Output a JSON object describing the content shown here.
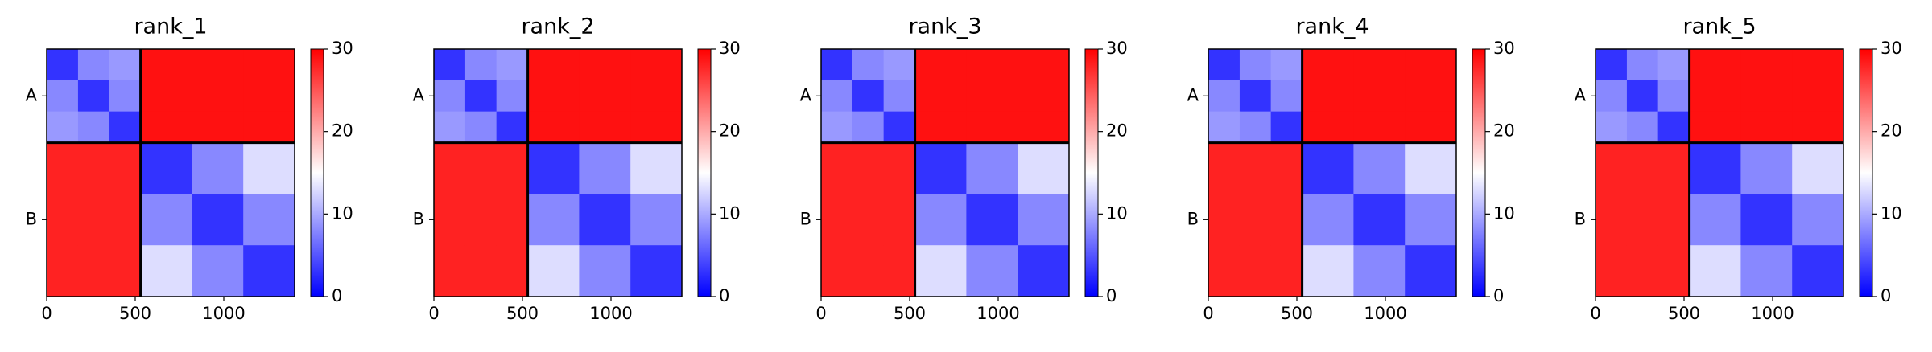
{
  "chart_data": [
    {
      "type": "heatmap",
      "title": "rank_1",
      "bins": [
        0,
        177,
        353,
        530,
        820,
        1110,
        1400
      ],
      "matrix": [
        [
          3,
          8,
          9,
          29,
          29,
          29
        ],
        [
          8,
          3,
          8,
          29,
          29,
          29
        ],
        [
          9,
          8,
          3,
          29,
          29,
          29
        ],
        [
          28,
          28,
          28,
          3,
          8,
          13
        ],
        [
          28,
          28,
          28,
          8,
          3,
          8
        ],
        [
          28,
          28,
          28,
          13,
          8,
          3
        ]
      ],
      "chain_breaks": [
        530
      ],
      "xlim": [
        0,
        1400
      ],
      "xticks": [
        0,
        500,
        1000
      ],
      "ylim": [
        1400,
        0
      ],
      "yticks": [
        {
          "value": 265,
          "label": "A"
        },
        {
          "value": 965,
          "label": "B"
        }
      ],
      "colorbar": {
        "lim": [
          0,
          30
        ],
        "ticks": [
          0,
          10,
          20,
          30
        ],
        "colors": [
          "#0000ff",
          "#ffffff",
          "#ff0000"
        ]
      }
    },
    {
      "type": "heatmap",
      "title": "rank_2",
      "bins": [
        0,
        177,
        353,
        530,
        820,
        1110,
        1400
      ],
      "matrix": [
        [
          3,
          8,
          9,
          29,
          29,
          29
        ],
        [
          8,
          3,
          8,
          29,
          29,
          29
        ],
        [
          9,
          8,
          3,
          29,
          29,
          29
        ],
        [
          28,
          28,
          28,
          3,
          8,
          13
        ],
        [
          28,
          28,
          28,
          8,
          3,
          8
        ],
        [
          28,
          28,
          28,
          13,
          8,
          3
        ]
      ],
      "chain_breaks": [
        530
      ],
      "xlim": [
        0,
        1400
      ],
      "xticks": [
        0,
        500,
        1000
      ],
      "ylim": [
        1400,
        0
      ],
      "yticks": [
        {
          "value": 265,
          "label": "A"
        },
        {
          "value": 965,
          "label": "B"
        }
      ],
      "colorbar": {
        "lim": [
          0,
          30
        ],
        "ticks": [
          0,
          10,
          20,
          30
        ],
        "colors": [
          "#0000ff",
          "#ffffff",
          "#ff0000"
        ]
      }
    },
    {
      "type": "heatmap",
      "title": "rank_3",
      "bins": [
        0,
        177,
        353,
        530,
        820,
        1110,
        1400
      ],
      "matrix": [
        [
          3,
          8,
          9,
          29,
          29,
          29
        ],
        [
          8,
          3,
          8,
          29,
          29,
          29
        ],
        [
          9,
          8,
          3,
          29,
          29,
          29
        ],
        [
          28,
          28,
          28,
          3,
          8,
          13
        ],
        [
          28,
          28,
          28,
          8,
          3,
          8
        ],
        [
          28,
          28,
          28,
          13,
          8,
          3
        ]
      ],
      "chain_breaks": [
        530
      ],
      "xlim": [
        0,
        1400
      ],
      "xticks": [
        0,
        500,
        1000
      ],
      "ylim": [
        1400,
        0
      ],
      "yticks": [
        {
          "value": 265,
          "label": "A"
        },
        {
          "value": 965,
          "label": "B"
        }
      ],
      "colorbar": {
        "lim": [
          0,
          30
        ],
        "ticks": [
          0,
          10,
          20,
          30
        ],
        "colors": [
          "#0000ff",
          "#ffffff",
          "#ff0000"
        ]
      }
    },
    {
      "type": "heatmap",
      "title": "rank_4",
      "bins": [
        0,
        177,
        353,
        530,
        820,
        1110,
        1400
      ],
      "matrix": [
        [
          3,
          8,
          9,
          29,
          29,
          29
        ],
        [
          8,
          3,
          8,
          29,
          29,
          29
        ],
        [
          9,
          8,
          3,
          29,
          29,
          29
        ],
        [
          28,
          28,
          28,
          3,
          8,
          13
        ],
        [
          28,
          28,
          28,
          8,
          3,
          8
        ],
        [
          28,
          28,
          28,
          13,
          8,
          3
        ]
      ],
      "chain_breaks": [
        530
      ],
      "xlim": [
        0,
        1400
      ],
      "xticks": [
        0,
        500,
        1000
      ],
      "ylim": [
        1400,
        0
      ],
      "yticks": [
        {
          "value": 265,
          "label": "A"
        },
        {
          "value": 965,
          "label": "B"
        }
      ],
      "colorbar": {
        "lim": [
          0,
          30
        ],
        "ticks": [
          0,
          10,
          20,
          30
        ],
        "colors": [
          "#0000ff",
          "#ffffff",
          "#ff0000"
        ]
      }
    },
    {
      "type": "heatmap",
      "title": "rank_5",
      "bins": [
        0,
        177,
        353,
        530,
        820,
        1110,
        1400
      ],
      "matrix": [
        [
          3,
          8,
          9,
          29,
          29,
          29
        ],
        [
          8,
          3,
          8,
          29,
          29,
          29
        ],
        [
          9,
          8,
          3,
          29,
          29,
          29
        ],
        [
          28,
          28,
          28,
          3,
          8,
          13
        ],
        [
          28,
          28,
          28,
          8,
          3,
          8
        ],
        [
          28,
          28,
          28,
          13,
          8,
          3
        ]
      ],
      "chain_breaks": [
        530
      ],
      "xlim": [
        0,
        1400
      ],
      "xticks": [
        0,
        500,
        1000
      ],
      "ylim": [
        1400,
        0
      ],
      "yticks": [
        {
          "value": 265,
          "label": "A"
        },
        {
          "value": 965,
          "label": "B"
        }
      ],
      "colorbar": {
        "lim": [
          0,
          30
        ],
        "ticks": [
          0,
          10,
          20,
          30
        ],
        "colors": [
          "#0000ff",
          "#ffffff",
          "#ff0000"
        ]
      }
    }
  ]
}
